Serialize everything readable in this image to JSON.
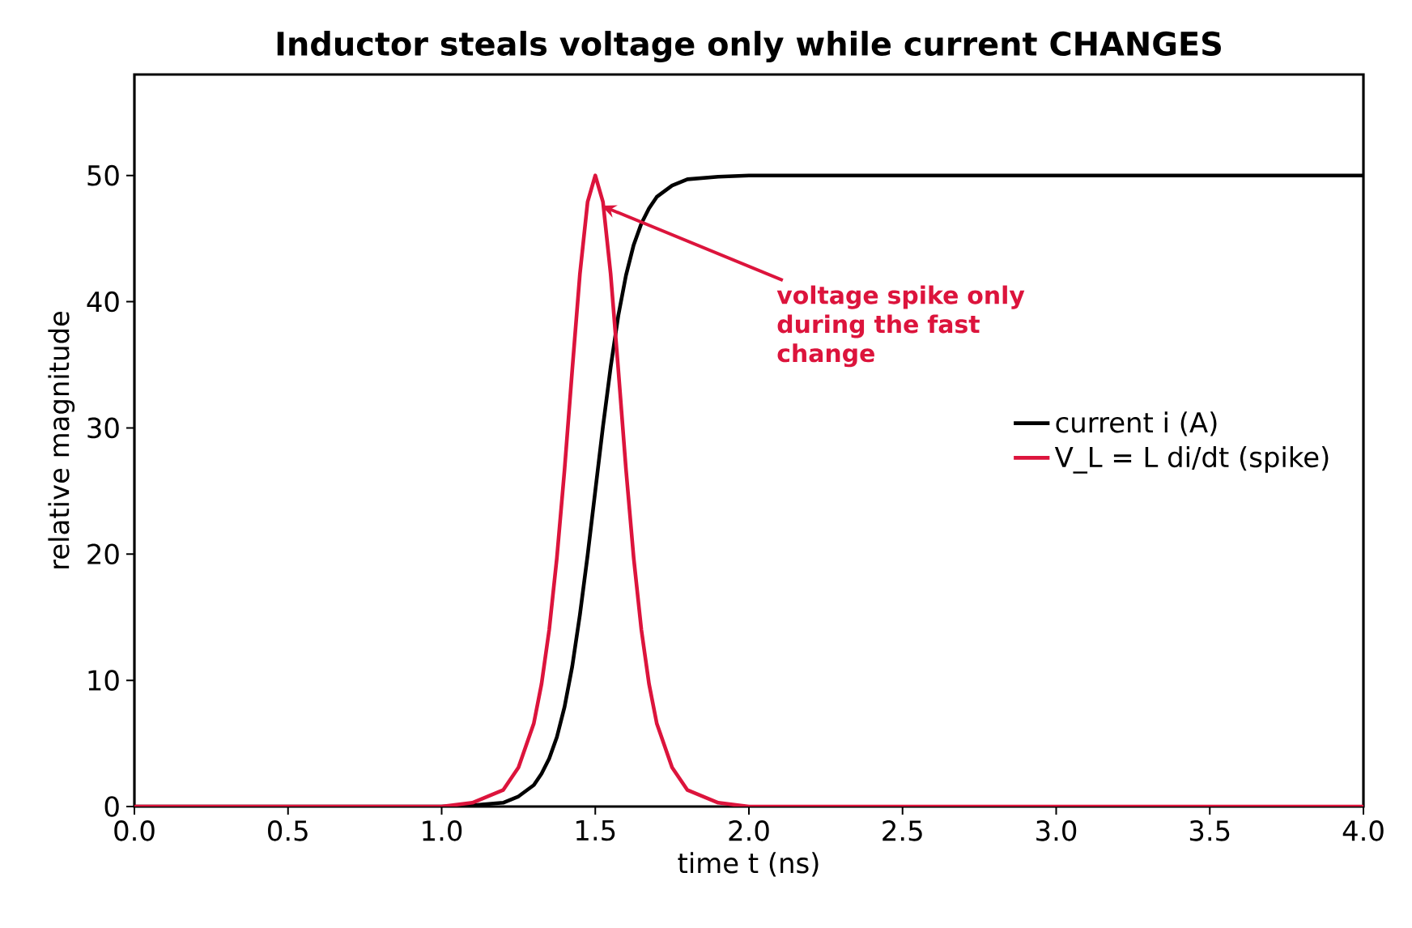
{
  "chart_data": {
    "type": "line",
    "title": "Inductor steals voltage only while current CHANGES",
    "xlabel": "time  t  (ns)",
    "ylabel": "relative magnitude",
    "x": [
      0,
      0.5,
      1.0,
      1.1,
      1.2,
      1.25,
      1.3,
      1.325,
      1.35,
      1.375,
      1.4,
      1.425,
      1.45,
      1.475,
      1.5,
      1.525,
      1.55,
      1.575,
      1.6,
      1.625,
      1.65,
      1.675,
      1.7,
      1.75,
      1.8,
      1.9,
      2.0,
      2.5,
      3.0,
      3.5,
      4.0
    ],
    "series": [
      {
        "name": "current i (A)",
        "color": "#000000",
        "values": [
          0,
          0,
          0,
          0.1,
          0.3,
          0.8,
          1.7,
          2.6,
          3.8,
          5.5,
          7.9,
          11.1,
          15.2,
          19.9,
          25,
          30.1,
          34.8,
          38.9,
          42.1,
          44.5,
          46.2,
          47.4,
          48.3,
          49.2,
          49.7,
          49.9,
          50,
          50,
          50,
          50,
          50
        ]
      },
      {
        "name": "V_L = L di/dt (spike)",
        "color": "#dc143c",
        "values": [
          0,
          0,
          0,
          0.3,
          1.3,
          3.1,
          6.6,
          9.7,
          14.0,
          19.7,
          26.7,
          34.6,
          42.2,
          47.9,
          50,
          47.9,
          42.2,
          34.6,
          26.7,
          19.7,
          14.0,
          9.7,
          6.6,
          3.1,
          1.3,
          0.3,
          0,
          0,
          0,
          0,
          0
        ]
      }
    ],
    "xlim": [
      0,
      4
    ],
    "ylim": [
      0,
      58
    ],
    "xticks": [
      {
        "value": 0,
        "label": "0.0"
      },
      {
        "value": 0.5,
        "label": "0.5"
      },
      {
        "value": 1,
        "label": "1.0"
      },
      {
        "value": 1.5,
        "label": "1.5"
      },
      {
        "value": 2,
        "label": "2.0"
      },
      {
        "value": 2.5,
        "label": "2.5"
      },
      {
        "value": 3,
        "label": "3.0"
      },
      {
        "value": 3.5,
        "label": "3.5"
      },
      {
        "value": 4,
        "label": "4.0"
      }
    ],
    "yticks": [
      0,
      10,
      20,
      30,
      40,
      50
    ],
    "annotations": [
      {
        "text": "voltage spike only during the fast change",
        "x": 1.52,
        "y": 47.6
      }
    ],
    "legend": "right",
    "grid": false,
    "marker": "none",
    "line_style": "solid"
  }
}
